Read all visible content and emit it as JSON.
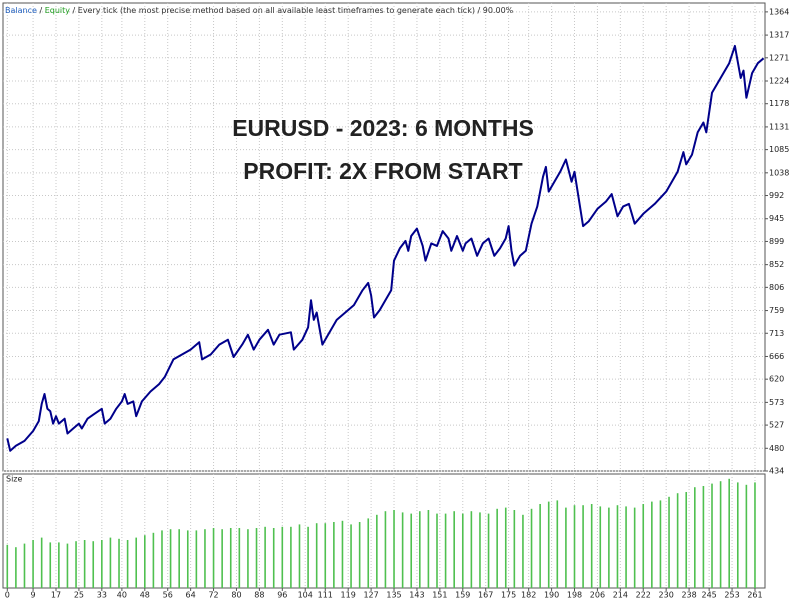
{
  "chart_data": [
    {
      "type": "line",
      "header": {
        "items": [
          {
            "text": "Balance",
            "color": "#1f5fbf"
          },
          {
            "text": "Equity",
            "color": "#1f9f1f"
          },
          {
            "text": "Every tick (the most precise method based on all available least timeframes to generate each tick)",
            "color": "#333333"
          },
          {
            "text": "90.00%",
            "color": "#333333"
          }
        ],
        "separator": " / "
      },
      "annotations": [
        {
          "text": "EURUSD - 2023: 6 MONTHS"
        },
        {
          "text": "PROFIT: 2X FROM START"
        }
      ],
      "annotation_color": "#e0252c",
      "x": [
        0,
        1,
        3,
        6,
        9,
        11,
        12,
        13,
        14,
        15,
        16,
        17,
        18,
        20,
        21,
        23,
        25,
        26,
        28,
        30,
        33,
        34,
        36,
        38,
        40,
        41,
        42,
        44,
        45,
        47,
        50,
        53,
        55,
        58,
        61,
        64,
        67,
        68,
        71,
        74,
        77,
        79,
        82,
        84,
        86,
        88,
        91,
        93,
        95,
        99,
        100,
        103,
        105,
        106,
        107,
        108,
        110,
        112,
        115,
        118,
        121,
        124,
        126,
        127,
        128,
        130,
        132,
        134,
        135,
        137,
        139,
        140,
        141,
        143,
        145,
        146,
        148,
        150,
        152,
        154,
        155,
        157,
        159,
        160,
        162,
        164,
        166,
        168,
        170,
        172,
        174,
        175,
        176,
        177,
        179,
        181,
        183,
        185,
        187,
        188,
        189,
        191,
        193,
        195,
        197,
        198,
        201,
        203,
        206,
        209,
        211,
        213,
        215,
        217,
        219,
        222,
        226,
        230,
        234,
        236,
        237,
        239,
        241,
        243,
        244,
        246,
        249,
        252,
        254,
        256,
        257,
        258,
        260,
        262,
        264
      ],
      "series": [
        {
          "name": "Balance",
          "color": "#00008b",
          "values": [
            500,
            475,
            485,
            495,
            515,
            535,
            570,
            590,
            560,
            555,
            530,
            545,
            530,
            540,
            510,
            520,
            530,
            520,
            540,
            548,
            560,
            530,
            540,
            560,
            575,
            590,
            570,
            575,
            545,
            575,
            595,
            610,
            625,
            660,
            670,
            680,
            695,
            660,
            670,
            690,
            700,
            665,
            690,
            710,
            680,
            700,
            720,
            690,
            710,
            715,
            680,
            700,
            725,
            780,
            740,
            755,
            690,
            710,
            740,
            755,
            770,
            800,
            815,
            790,
            745,
            760,
            780,
            800,
            860,
            885,
            900,
            880,
            910,
            925,
            890,
            860,
            895,
            890,
            920,
            905,
            880,
            910,
            880,
            895,
            905,
            870,
            895,
            905,
            870,
            885,
            905,
            930,
            880,
            850,
            870,
            880,
            935,
            970,
            1030,
            1050,
            1000,
            1020,
            1040,
            1065,
            1020,
            1040,
            930,
            940,
            965,
            980,
            995,
            950,
            970,
            975,
            935,
            955,
            975,
            1000,
            1040,
            1080,
            1055,
            1075,
            1120,
            1140,
            1120,
            1200,
            1230,
            1260,
            1295,
            1230,
            1245,
            1190,
            1240,
            1260,
            1270
          ]
        }
      ],
      "xlim": [
        -1.5,
        264.5
      ],
      "xticks": [
        0,
        9,
        17,
        25,
        33,
        40,
        48,
        56,
        64,
        72,
        80,
        88,
        96,
        104,
        111,
        119,
        127,
        135,
        143,
        151,
        159,
        167,
        175,
        182,
        190,
        198,
        206,
        214,
        222,
        230,
        238,
        245,
        253,
        261
      ],
      "ylim": [
        434,
        1382
      ],
      "yticks": [
        434,
        480,
        527,
        573,
        620,
        666,
        713,
        759,
        806,
        852,
        899,
        945,
        992,
        1038,
        1085,
        1131,
        1178,
        1224,
        1271,
        1317,
        1364
      ],
      "grid": true
    },
    {
      "type": "bar",
      "title": "Size",
      "color": "#4fc04f",
      "x": [
        0,
        3,
        6,
        9,
        12,
        15,
        18,
        21,
        24,
        27,
        30,
        33,
        36,
        39,
        42,
        45,
        48,
        51,
        54,
        57,
        60,
        63,
        66,
        69,
        72,
        75,
        78,
        81,
        84,
        87,
        90,
        93,
        96,
        99,
        102,
        105,
        108,
        111,
        114,
        117,
        120,
        123,
        126,
        129,
        132,
        135,
        138,
        141,
        144,
        147,
        150,
        153,
        156,
        159,
        162,
        165,
        168,
        171,
        174,
        177,
        180,
        183,
        186,
        189,
        192,
        195,
        198,
        201,
        204,
        207,
        210,
        213,
        216,
        219,
        222,
        225,
        228,
        231,
        234,
        237,
        240,
        243,
        246,
        249,
        252,
        255,
        258,
        261
      ],
      "values": [
        0.36,
        0.34,
        0.37,
        0.4,
        0.42,
        0.38,
        0.38,
        0.37,
        0.39,
        0.4,
        0.39,
        0.4,
        0.42,
        0.41,
        0.4,
        0.42,
        0.44,
        0.46,
        0.48,
        0.49,
        0.49,
        0.48,
        0.48,
        0.49,
        0.5,
        0.49,
        0.5,
        0.5,
        0.49,
        0.5,
        0.51,
        0.5,
        0.51,
        0.51,
        0.53,
        0.51,
        0.54,
        0.54,
        0.55,
        0.56,
        0.53,
        0.55,
        0.58,
        0.61,
        0.64,
        0.65,
        0.63,
        0.62,
        0.64,
        0.65,
        0.62,
        0.62,
        0.64,
        0.62,
        0.64,
        0.63,
        0.62,
        0.66,
        0.67,
        0.65,
        0.61,
        0.66,
        0.7,
        0.72,
        0.73,
        0.67,
        0.69,
        0.69,
        0.7,
        0.68,
        0.67,
        0.69,
        0.68,
        0.67,
        0.7,
        0.72,
        0.73,
        0.76,
        0.79,
        0.8,
        0.84,
        0.85,
        0.87,
        0.89,
        0.91,
        0.88,
        0.86,
        0.88
      ],
      "ylim": [
        0,
        0.95
      ]
    }
  ]
}
